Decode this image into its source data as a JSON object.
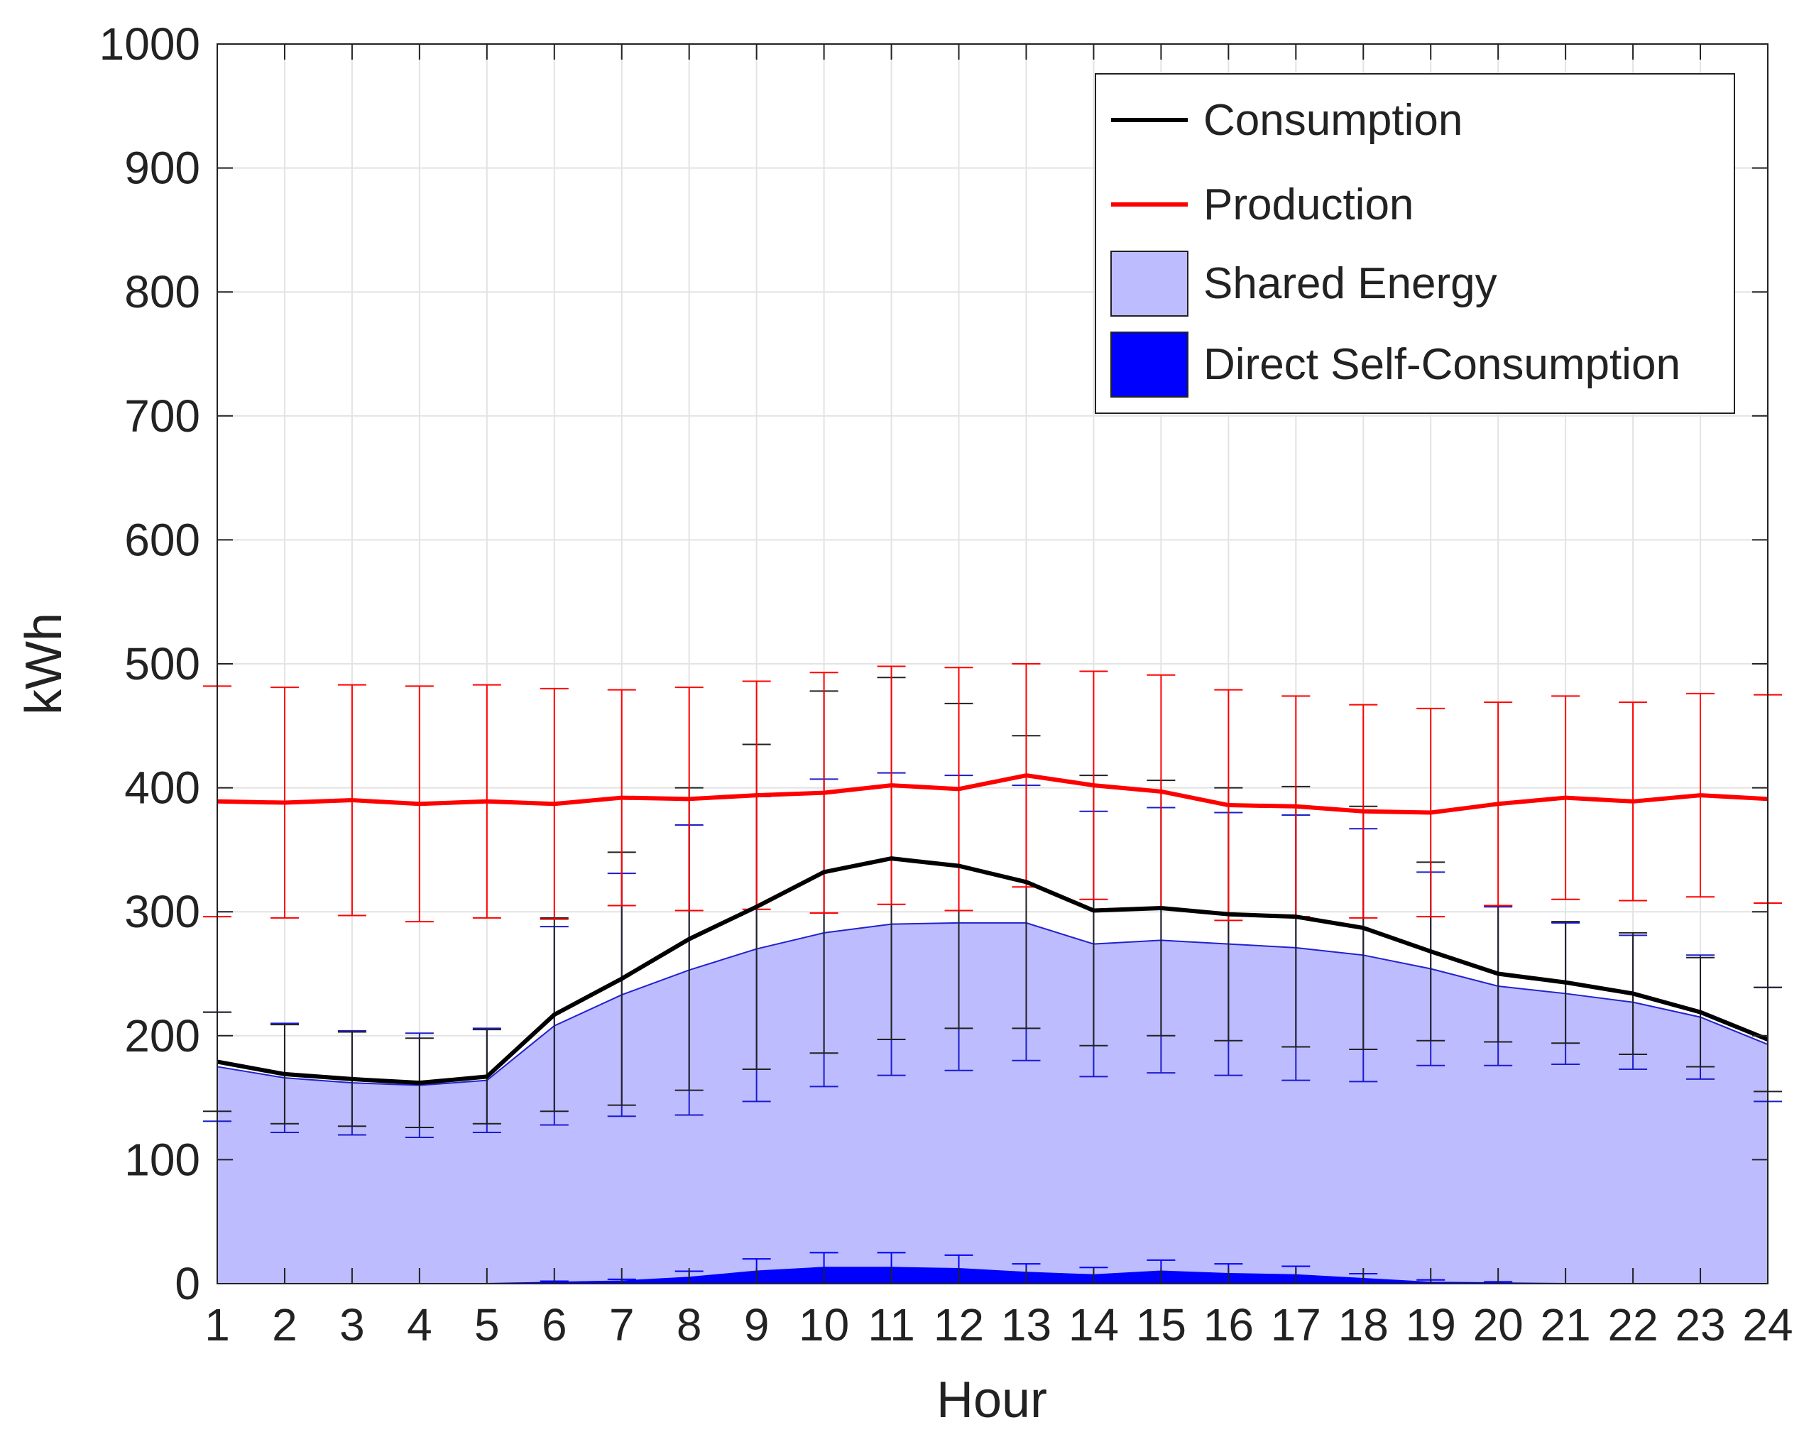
{
  "chart_data": {
    "type": "line",
    "xlabel": "Hour",
    "ylabel": "kWh",
    "ylim": [
      0,
      1000
    ],
    "xlim": [
      1,
      24
    ],
    "grid": true,
    "legend_position": "top-right",
    "x": [
      1,
      2,
      3,
      4,
      5,
      6,
      7,
      8,
      9,
      10,
      11,
      12,
      13,
      14,
      15,
      16,
      17,
      18,
      19,
      20,
      21,
      22,
      23,
      24
    ],
    "x_tick_labels": [
      "1",
      "2",
      "3",
      "4",
      "5",
      "6",
      "7",
      "8",
      "9",
      "10",
      "11",
      "12",
      "13",
      "14",
      "15",
      "16",
      "17",
      "18",
      "19",
      "20",
      "21",
      "22",
      "23",
      "24"
    ],
    "y_ticks": [
      0,
      100,
      200,
      300,
      400,
      500,
      600,
      700,
      800,
      900,
      1000
    ],
    "y_tick_labels": [
      "0",
      "100",
      "200",
      "300",
      "400",
      "500",
      "600",
      "700",
      "800",
      "900",
      "1000"
    ],
    "series": [
      {
        "name": "Consumption",
        "kind": "line",
        "color": "#000000",
        "error_color": "#222222",
        "values": [
          179,
          169,
          165,
          162,
          167,
          217,
          246,
          278,
          304,
          332,
          343,
          337,
          324,
          301,
          303,
          298,
          296,
          287,
          268,
          250,
          243,
          234,
          219,
          197
        ],
        "error": [
          40,
          40,
          38,
          36,
          38,
          78,
          102,
          122,
          131,
          146,
          146,
          131,
          118,
          109,
          103,
          102,
          105,
          98,
          72,
          55,
          49,
          49,
          44,
          42
        ]
      },
      {
        "name": "Production",
        "kind": "line",
        "color": "#ff0000",
        "error_color": "#ff0000",
        "values": [
          389,
          388,
          390,
          387,
          389,
          387,
          392,
          391,
          394,
          396,
          402,
          399,
          410,
          402,
          397,
          386,
          385,
          381,
          380,
          387,
          392,
          389,
          394,
          391
        ],
        "error": [
          93,
          93,
          93,
          95,
          94,
          93,
          87,
          90,
          92,
          97,
          96,
          98,
          90,
          92,
          94,
          93,
          89,
          86,
          84,
          82,
          82,
          80,
          82,
          84
        ]
      },
      {
        "name": "Shared Energy",
        "kind": "area",
        "color": "#bcbcff",
        "edge_color": "#2222cc",
        "error_color": "#1c1ccc",
        "values": [
          175,
          166,
          162,
          160,
          164,
          208,
          233,
          253,
          270,
          283,
          290,
          291,
          291,
          274,
          277,
          274,
          271,
          265,
          254,
          240,
          234,
          227,
          215,
          193
        ],
        "error": [
          44,
          44,
          42,
          42,
          42,
          80,
          98,
          117,
          123,
          124,
          122,
          119,
          111,
          107,
          107,
          106,
          107,
          102,
          78,
          64,
          57,
          54,
          50,
          46
        ]
      },
      {
        "name": "Direct Self-Consumption",
        "kind": "area",
        "color": "#0000ff",
        "error_color": "#0000ff",
        "values": [
          0,
          0,
          0,
          0,
          0,
          1,
          2,
          5,
          10,
          13,
          13,
          12,
          9,
          7,
          10,
          8,
          7,
          4,
          1,
          0.5,
          0,
          0,
          0,
          0
        ],
        "error": [
          0,
          0,
          0,
          0,
          0,
          1,
          1.5,
          5,
          10,
          12,
          12,
          11,
          7,
          6,
          9,
          8,
          7,
          4,
          2,
          1,
          0,
          0,
          0,
          0
        ]
      }
    ]
  }
}
